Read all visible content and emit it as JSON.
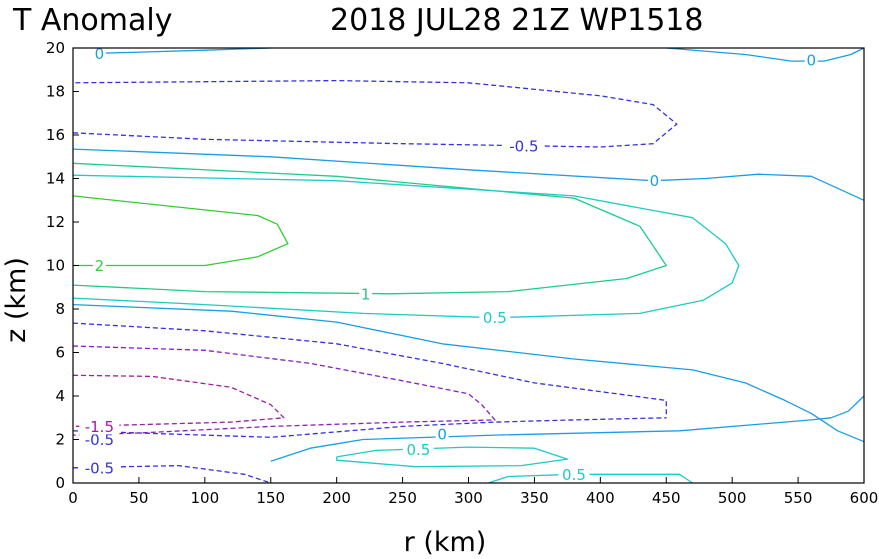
{
  "chart_data": {
    "type": "contour",
    "title_left": "T Anomaly",
    "title_right": "2018 JUL28 21Z   WP1518",
    "xlabel": "r (km)",
    "ylabel": "z (km)",
    "xlim": [
      0,
      600
    ],
    "ylim": [
      0,
      20
    ],
    "xticks": [
      "0",
      "50",
      "100",
      "150",
      "200",
      "250",
      "300",
      "350",
      "400",
      "450",
      "500",
      "550",
      "600"
    ],
    "yticks": [
      "0",
      "2",
      "4",
      "6",
      "8",
      "10",
      "12",
      "14",
      "16",
      "18",
      "20"
    ],
    "colors": {
      "c_2": "#33cc33",
      "c_1": "#1fcc8a",
      "c_05": "#1ecbc6",
      "c_0": "#199ee6",
      "c_m05": "#3333dd",
      "c_m1": "#8a1fbf",
      "c_m15": "#a01ea0"
    },
    "contours": [
      {
        "level": "2",
        "color_key": "c_2",
        "dash": false,
        "points": [
          [
            0,
            13.2
          ],
          [
            140,
            12.3
          ],
          [
            155,
            11.9
          ],
          [
            163,
            11
          ],
          [
            140,
            10.4
          ],
          [
            100,
            10
          ],
          [
            0,
            10
          ]
        ],
        "labels": [
          {
            "text": "2",
            "x": 20,
            "y": 10
          }
        ]
      },
      {
        "level": "1",
        "color_key": "c_1",
        "dash": false,
        "points": [
          [
            0,
            14.7
          ],
          [
            200,
            14.1
          ],
          [
            380,
            13.1
          ],
          [
            430,
            11.8
          ],
          [
            450,
            10
          ],
          [
            420,
            9.4
          ],
          [
            330,
            8.8
          ],
          [
            240,
            8.7
          ],
          [
            100,
            8.8
          ],
          [
            0,
            9.1
          ]
        ],
        "labels": [
          {
            "text": "1",
            "x": 222,
            "y": 8.7
          }
        ]
      },
      {
        "level": "0.5",
        "color_key": "c_05",
        "dash": false,
        "points": [
          [
            0,
            14.15
          ],
          [
            200,
            13.9
          ],
          [
            380,
            13.2
          ],
          [
            470,
            12.2
          ],
          [
            495,
            11
          ],
          [
            505,
            10
          ],
          [
            500,
            9.2
          ],
          [
            478,
            8.4
          ],
          [
            430,
            7.8
          ],
          [
            320,
            7.6
          ],
          [
            220,
            7.8
          ],
          [
            100,
            8.2
          ],
          [
            0,
            8.5
          ]
        ],
        "labels": [
          {
            "text": "0.5",
            "x": 320,
            "y": 7.6
          }
        ]
      },
      {
        "level": "0",
        "color_key": "c_0",
        "dash": false,
        "points": [
          [
            0,
            15.35
          ],
          [
            150,
            15
          ],
          [
            300,
            14.4
          ],
          [
            440,
            13.9
          ],
          [
            480,
            14
          ],
          [
            520,
            14.2
          ],
          [
            560,
            14.1
          ],
          [
            600,
            13
          ]
        ],
        "labels": [
          {
            "text": "0",
            "x": 441,
            "y": 13.9
          }
        ]
      },
      {
        "level": "0",
        "color_key": "c_0",
        "dash": false,
        "points": [
          [
            0,
            8.2
          ],
          [
            120,
            7.9
          ],
          [
            200,
            7.4
          ],
          [
            280,
            6.4
          ],
          [
            380,
            5.7
          ],
          [
            470,
            5.2
          ],
          [
            510,
            4.6
          ],
          [
            540,
            3.8
          ],
          [
            560,
            3.2
          ],
          [
            580,
            2.4
          ],
          [
            600,
            1.9
          ]
        ],
        "labels": []
      },
      {
        "level": "0",
        "color_key": "c_0",
        "dash": false,
        "points": [
          [
            150,
            1
          ],
          [
            180,
            1.6
          ],
          [
            220,
            2
          ],
          [
            320,
            2.2
          ],
          [
            460,
            2.4
          ],
          [
            560,
            2.9
          ],
          [
            575,
            3
          ],
          [
            588,
            3.3
          ],
          [
            600,
            4
          ]
        ],
        "labels": [
          {
            "text": "0",
            "x": 280,
            "y": 2.25
          }
        ]
      },
      {
        "level": "0",
        "color_key": "c_0",
        "dash": false,
        "points": [
          [
            17,
            19.75
          ],
          [
            100,
            19.9
          ],
          [
            150,
            20
          ]
        ],
        "labels": [
          {
            "text": "0",
            "x": 20,
            "y": 19.75
          }
        ]
      },
      {
        "level": "0",
        "color_key": "c_0",
        "dash": false,
        "points": [
          [
            450,
            20
          ],
          [
            510,
            19.7
          ],
          [
            545,
            19.4
          ],
          [
            570,
            19.4
          ],
          [
            590,
            19.7
          ],
          [
            600,
            20
          ]
        ],
        "labels": [
          {
            "text": "0",
            "x": 560,
            "y": 19.45
          }
        ]
      },
      {
        "level": "0.5",
        "color_key": "c_05",
        "dash": false,
        "points": [
          [
            200,
            1.2
          ],
          [
            230,
            1.5
          ],
          [
            300,
            1.65
          ],
          [
            350,
            1.6
          ],
          [
            375,
            1.1
          ],
          [
            340,
            0.8
          ],
          [
            260,
            0.75
          ],
          [
            200,
            1.05
          ],
          [
            200,
            1.2
          ]
        ],
        "labels": [
          {
            "text": "0.5",
            "x": 262,
            "y": 1.55
          }
        ]
      },
      {
        "level": "0.5",
        "color_key": "c_05",
        "dash": false,
        "points": [
          [
            315,
            0
          ],
          [
            330,
            0.3
          ],
          [
            380,
            0.4
          ],
          [
            460,
            0.4
          ],
          [
            470,
            0
          ]
        ],
        "labels": [
          {
            "text": "0.5",
            "x": 380,
            "y": 0.4
          }
        ]
      },
      {
        "level": "-0.5",
        "color_key": "c_m05",
        "dash": true,
        "points": [
          [
            0,
            16.1
          ],
          [
            100,
            15.8
          ],
          [
            250,
            15.6
          ],
          [
            400,
            15.45
          ],
          [
            440,
            15.6
          ],
          [
            458,
            16.5
          ],
          [
            440,
            17.4
          ],
          [
            400,
            17.8
          ],
          [
            300,
            18.4
          ],
          [
            200,
            18.5
          ],
          [
            100,
            18.45
          ],
          [
            0,
            18.4
          ]
        ],
        "labels": [
          {
            "text": "-0.5",
            "x": 342,
            "y": 15.5
          }
        ]
      },
      {
        "level": "-0.5",
        "color_key": "c_m05",
        "dash": true,
        "points": [
          [
            0,
            7.35
          ],
          [
            100,
            7
          ],
          [
            200,
            6.4
          ],
          [
            280,
            5.5
          ],
          [
            350,
            4.6
          ],
          [
            400,
            4.2
          ],
          [
            450,
            3.8
          ],
          [
            450,
            3
          ]
        ],
        "labels": []
      },
      {
        "level": "-0.5",
        "color_key": "c_m05",
        "dash": true,
        "points": [
          [
            0,
            2.4
          ],
          [
            150,
            2.1
          ],
          [
            250,
            2.6
          ],
          [
            320,
            2.8
          ],
          [
            380,
            2.9
          ],
          [
            450,
            3
          ]
        ],
        "labels": [
          {
            "text": "-0.5",
            "x": 20,
            "y": 2
          }
        ]
      },
      {
        "level": "-0.5",
        "color_key": "c_m05",
        "dash": true,
        "points": [
          [
            0,
            0.7
          ],
          [
            80,
            0.8
          ],
          [
            130,
            0.4
          ],
          [
            150,
            0
          ]
        ],
        "labels": [
          {
            "text": "-0.5",
            "x": 20,
            "y": 0.7
          }
        ]
      },
      {
        "level": "-1",
        "color_key": "c_m1",
        "dash": true,
        "points": [
          [
            0,
            6.3
          ],
          [
            100,
            6.1
          ],
          [
            180,
            5.5
          ],
          [
            250,
            4.7
          ],
          [
            300,
            4.1
          ],
          [
            310,
            3.6
          ],
          [
            320,
            2.9
          ],
          [
            250,
            2.8
          ],
          [
            150,
            2.6
          ],
          [
            50,
            2.3
          ],
          [
            0,
            2.2
          ]
        ],
        "labels": []
      },
      {
        "level": "-1.5",
        "color_key": "c_m15",
        "dash": true,
        "points": [
          [
            0,
            4.95
          ],
          [
            60,
            4.9
          ],
          [
            120,
            4.4
          ],
          [
            150,
            3.6
          ],
          [
            160,
            3
          ],
          [
            120,
            2.8
          ],
          [
            60,
            2.7
          ],
          [
            0,
            2.6
          ]
        ],
        "labels": [
          {
            "text": "-1.5",
            "x": 20,
            "y": 2.6
          }
        ]
      }
    ]
  }
}
